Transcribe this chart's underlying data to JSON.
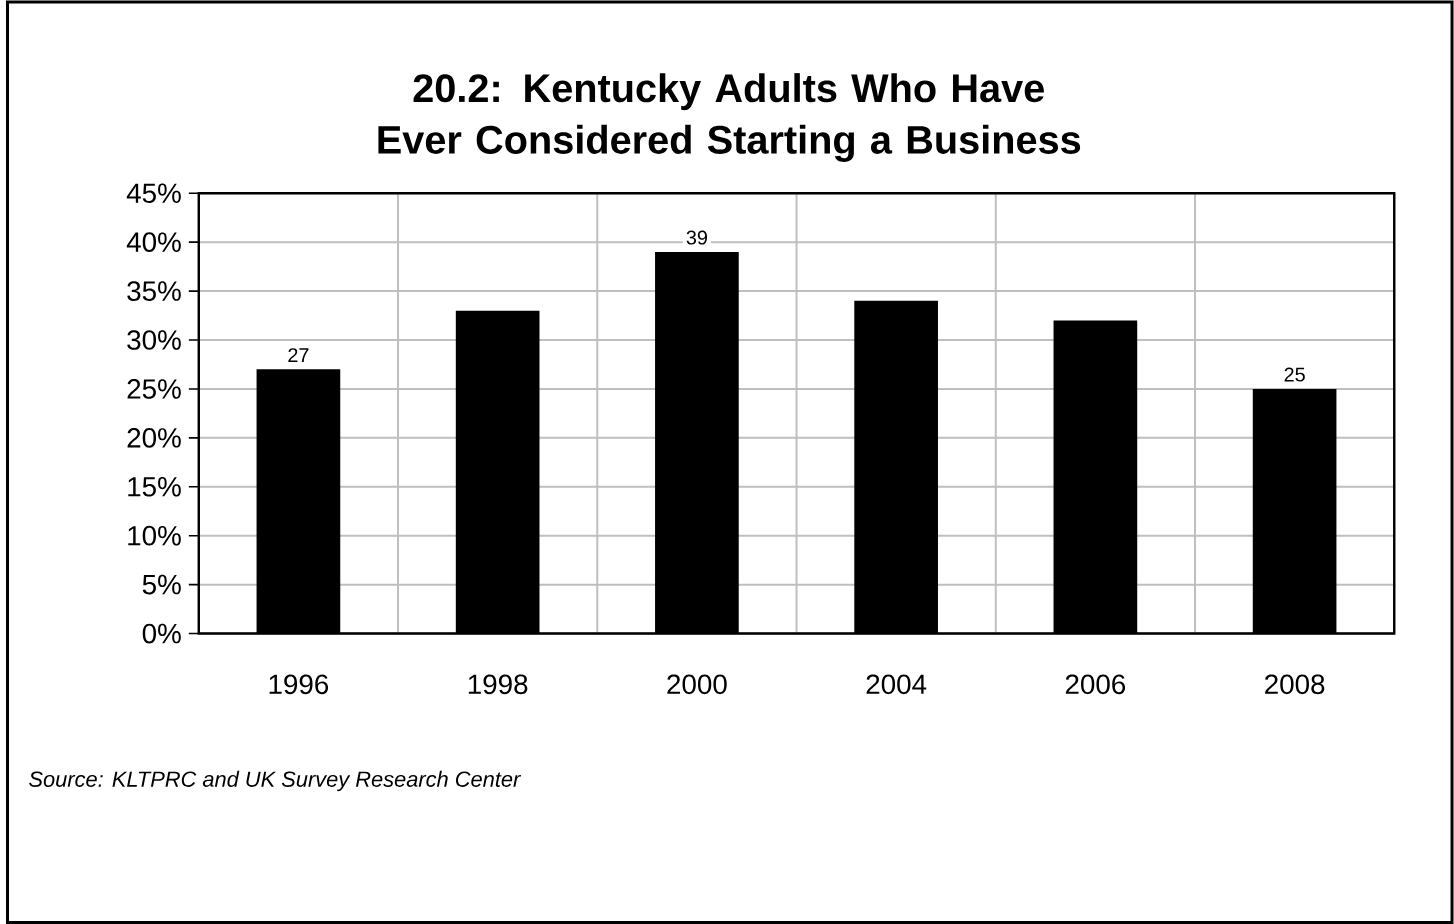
{
  "chart_data": {
    "type": "bar",
    "title": "20.2: Kentucky Adults Who Have Ever Considered Starting a Business",
    "categories": [
      "1996",
      "1998",
      "2000",
      "2004",
      "2006",
      "2008"
    ],
    "values": [
      27,
      33,
      39,
      34,
      32,
      25
    ],
    "value_labels": [
      "27",
      null,
      "39",
      null,
      null,
      "25"
    ],
    "color": "#000000",
    "ylim": [
      0,
      45
    ],
    "yticks": [
      {
        "value": 0,
        "label": "0%"
      },
      {
        "value": 5,
        "label": "5%"
      },
      {
        "value": 10,
        "label": "10%"
      },
      {
        "value": 15,
        "label": "15%"
      },
      {
        "value": 20,
        "label": "20%"
      },
      {
        "value": 25,
        "label": "25%"
      },
      {
        "value": 30,
        "label": "30%"
      },
      {
        "value": 35,
        "label": "35%"
      },
      {
        "value": 40,
        "label": "40%"
      },
      {
        "value": 45,
        "label": "45%"
      }
    ],
    "grid": true,
    "annotations": [
      "*Source: KLTPRC and UK Survey Research Center*"
    ]
  }
}
